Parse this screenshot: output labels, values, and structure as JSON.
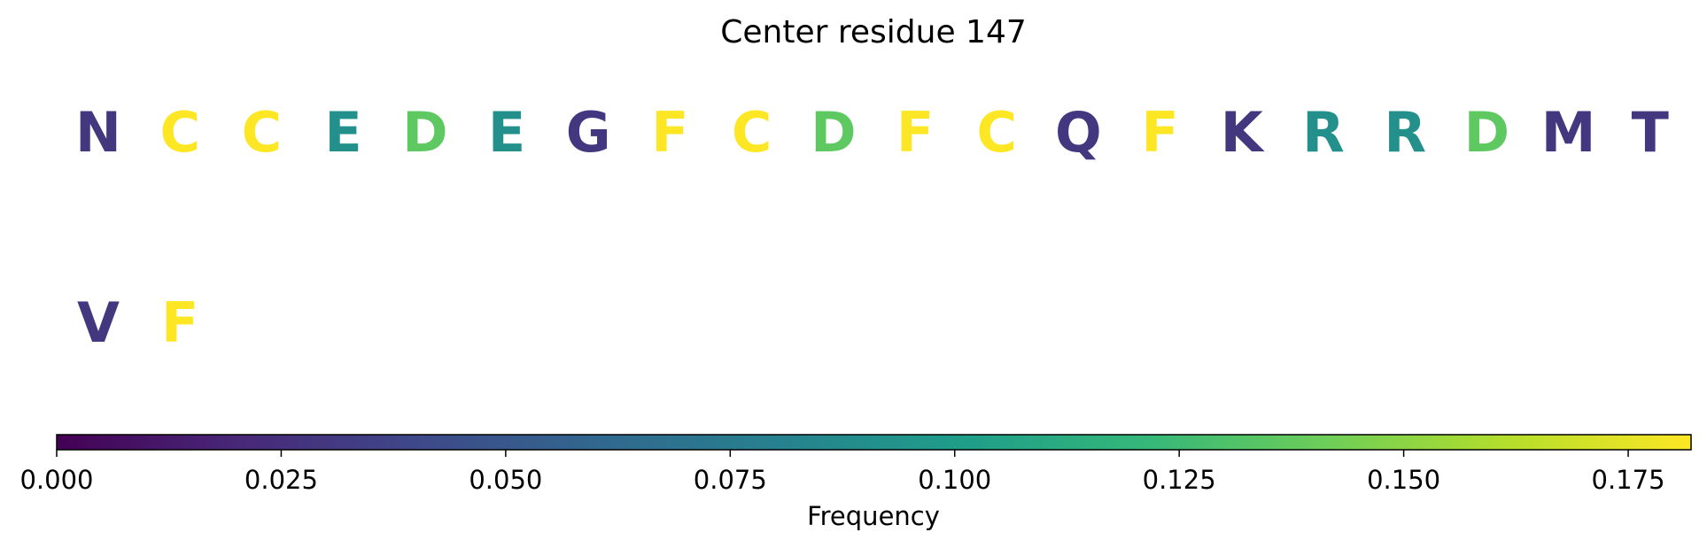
{
  "chart_data": {
    "type": "heatmap",
    "title": "Center residue 147",
    "colormap": "viridis",
    "residues": [
      {
        "letter": "N",
        "frequency": 0.03
      },
      {
        "letter": "C",
        "frequency": 0.182
      },
      {
        "letter": "C",
        "frequency": 0.182
      },
      {
        "letter": "E",
        "frequency": 0.091
      },
      {
        "letter": "D",
        "frequency": 0.136
      },
      {
        "letter": "E",
        "frequency": 0.091
      },
      {
        "letter": "G",
        "frequency": 0.03
      },
      {
        "letter": "F",
        "frequency": 0.182
      },
      {
        "letter": "C",
        "frequency": 0.182
      },
      {
        "letter": "D",
        "frequency": 0.136
      },
      {
        "letter": "F",
        "frequency": 0.182
      },
      {
        "letter": "C",
        "frequency": 0.182
      },
      {
        "letter": "Q",
        "frequency": 0.03
      },
      {
        "letter": "F",
        "frequency": 0.182
      },
      {
        "letter": "K",
        "frequency": 0.03
      },
      {
        "letter": "R",
        "frequency": 0.091
      },
      {
        "letter": "R",
        "frequency": 0.091
      },
      {
        "letter": "D",
        "frequency": 0.136
      },
      {
        "letter": "M",
        "frequency": 0.03
      },
      {
        "letter": "T",
        "frequency": 0.03
      },
      {
        "letter": "V",
        "frequency": 0.03
      },
      {
        "letter": "F",
        "frequency": 0.182
      }
    ],
    "colorbar": {
      "label": "Frequency",
      "range": [
        0,
        0.182
      ],
      "ticks": [
        0,
        0.025,
        0.05,
        0.075,
        0.1,
        0.125,
        0.15,
        0.175
      ],
      "tick_labels": [
        "0.000",
        "0.025",
        "0.050",
        "0.075",
        "0.100",
        "0.125",
        "0.150",
        "0.175"
      ]
    }
  }
}
